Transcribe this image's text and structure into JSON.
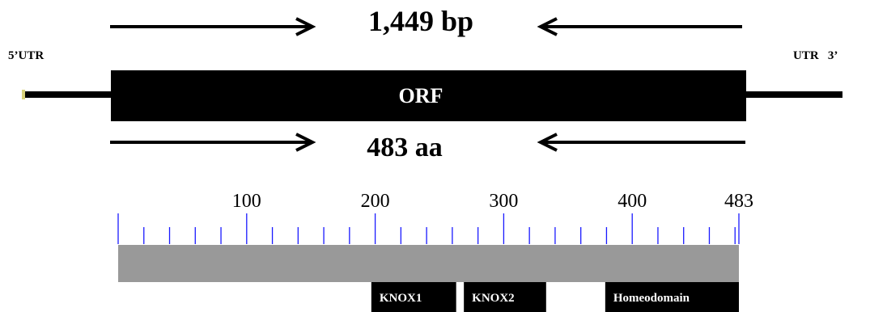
{
  "gene": {
    "bp_label": "1,449 bp",
    "utr5_label": "5’UTR",
    "utr3_label": "UTR   3’",
    "orf_label": "ORF",
    "aa_label": "483 aa"
  },
  "protein": {
    "length": 483,
    "tick_step": 20,
    "tick_labels": [
      {
        "value": 100,
        "text": "100"
      },
      {
        "value": 200,
        "text": "200"
      },
      {
        "value": 300,
        "text": "300"
      },
      {
        "value": 400,
        "text": "400"
      },
      {
        "value": 483,
        "text": "483"
      }
    ],
    "domains": [
      {
        "name": "KNOX1",
        "start": 197,
        "end": 263
      },
      {
        "name": "KNOX2",
        "start": 269,
        "end": 333
      },
      {
        "name": "Homeodomain",
        "start": 379,
        "end": 483
      }
    ]
  },
  "colors": {
    "tick": "#1a1aff",
    "scale_bar": "#999999",
    "gene_body": "#000000",
    "utr_end_marker": "#d8d27a",
    "domain_box": "#000000",
    "domain_text": "#ffffff"
  }
}
